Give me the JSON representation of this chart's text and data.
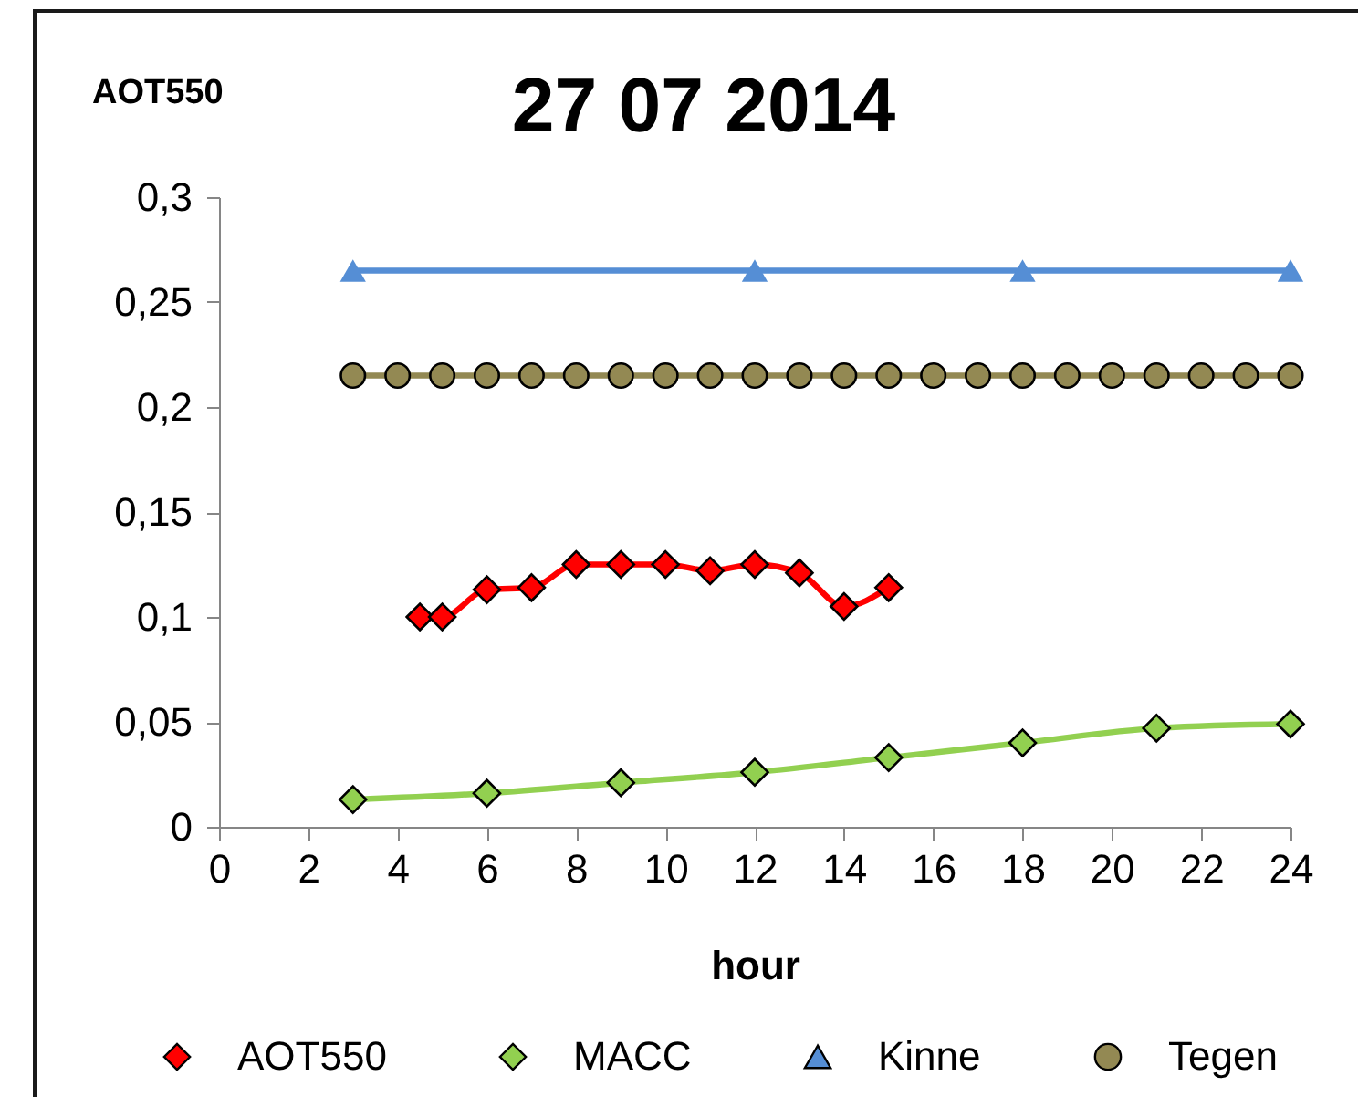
{
  "chart_data": {
    "type": "line",
    "title": "27 07 2014",
    "xlabel": "hour",
    "ylabel": "AOT550",
    "xlim": [
      0,
      24
    ],
    "xticks": [
      0,
      2,
      4,
      6,
      8,
      10,
      12,
      14,
      16,
      18,
      20,
      22,
      24
    ],
    "ylim": [
      0,
      0.3
    ],
    "yticks": [
      {
        "value": 0,
        "label": "0"
      },
      {
        "value": 0.05,
        "label": "0,05"
      },
      {
        "value": 0.1,
        "label": "0,1"
      },
      {
        "value": 0.15,
        "label": "0,15"
      },
      {
        "value": 0.2,
        "label": "0,2"
      },
      {
        "value": 0.25,
        "label": "0,25"
      },
      {
        "value": 0.3,
        "label": "0,3"
      }
    ],
    "grid": false,
    "legend": "bottom",
    "line_style": "solid",
    "series": [
      {
        "name": "AOT550",
        "color": "#ff0000",
        "marker": "diamond",
        "x": [
          4.5,
          5,
          6,
          7,
          8,
          9,
          10,
          11,
          12,
          13,
          14,
          15
        ],
        "values": [
          0.1,
          0.1,
          0.113,
          0.114,
          0.125,
          0.125,
          0.125,
          0.122,
          0.125,
          0.121,
          0.105,
          0.114
        ]
      },
      {
        "name": "MACC",
        "color": "#92d050",
        "marker": "diamond",
        "x": [
          3,
          6,
          9,
          12,
          15,
          18,
          21,
          24
        ],
        "values": [
          0.013,
          0.016,
          0.021,
          0.026,
          0.033,
          0.04,
          0.047,
          0.049
        ]
      },
      {
        "name": "Kinne",
        "color": "#558ed5",
        "marker": "triangle",
        "x": [
          3,
          12,
          18,
          24
        ],
        "values": [
          0.265,
          0.265,
          0.265,
          0.265
        ]
      },
      {
        "name": "Tegen",
        "color": "#938953",
        "marker": "circle",
        "x": [
          3,
          4,
          5,
          6,
          7,
          8,
          9,
          10,
          11,
          12,
          13,
          14,
          15,
          16,
          17,
          18,
          19,
          20,
          21,
          22,
          23,
          24
        ],
        "values": [
          0.215,
          0.215,
          0.215,
          0.215,
          0.215,
          0.215,
          0.215,
          0.215,
          0.215,
          0.215,
          0.215,
          0.215,
          0.215,
          0.215,
          0.215,
          0.215,
          0.215,
          0.215,
          0.215,
          0.215,
          0.215,
          0.215
        ]
      }
    ]
  }
}
